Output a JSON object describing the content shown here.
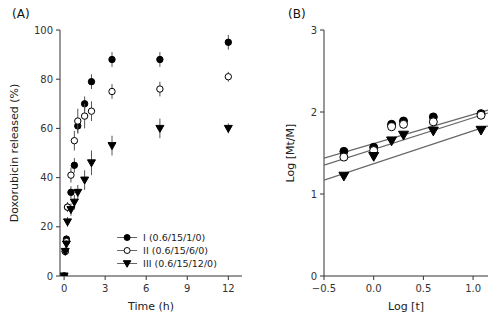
{
  "chart_data": [
    {
      "type": "scatter",
      "title": "(A)",
      "x_label": "Time (h)",
      "y_label": "Doxorubicin released (%)",
      "xlim": [
        -0.3,
        13.0
      ],
      "ylim": [
        0,
        100
      ],
      "xticks": [
        0,
        3,
        6,
        9,
        12
      ],
      "yticks": [
        0,
        20,
        40,
        60,
        80,
        100
      ],
      "legend": "lower right",
      "series": [
        {
          "name": "I (0.6/15/1/0)",
          "marker": "circle_filled",
          "color": "#000000",
          "x": [
            0,
            0.083,
            0.17,
            0.25,
            0.5,
            0.75,
            1.0,
            1.5,
            2.0,
            3.5,
            7.0,
            12.0
          ],
          "values": [
            0,
            10,
            15,
            28,
            34,
            45,
            61,
            70,
            79,
            88,
            88,
            95
          ],
          "yerr": [
            0,
            1,
            1.5,
            2,
            2.5,
            3,
            3,
            3,
            3,
            3,
            3,
            3
          ]
        },
        {
          "name": "II (0.6/15/6/0)",
          "marker": "circle_open",
          "color": "#000000",
          "x": [
            0,
            0.083,
            0.17,
            0.25,
            0.5,
            0.75,
            1.0,
            1.5,
            2.0,
            3.5,
            7.0,
            12.0
          ],
          "values": [
            0,
            10,
            14,
            28,
            41,
            55,
            63,
            65,
            67,
            75,
            76,
            81
          ],
          "yerr": [
            0,
            1,
            1.5,
            2,
            3,
            4,
            5,
            5,
            4,
            3,
            3,
            2
          ]
        },
        {
          "name": "III (0.6/15/12/0)",
          "marker": "triangle_down_filled",
          "color": "#000000",
          "x": [
            0,
            0.083,
            0.17,
            0.25,
            0.5,
            0.75,
            1.0,
            1.5,
            2.0,
            3.5,
            7.0,
            12.0
          ],
          "values": [
            0,
            10,
            13,
            22,
            27,
            30,
            34,
            39,
            46,
            53,
            60,
            60
          ],
          "yerr": [
            0,
            1,
            1.5,
            2,
            2.5,
            3,
            3,
            4,
            5,
            4,
            4,
            2
          ]
        }
      ]
    },
    {
      "type": "scatter",
      "title": "(B)",
      "x_label": "Log [t]",
      "y_label": "Log [Mt/M]",
      "xlim": [
        -0.5,
        1.15
      ],
      "ylim": [
        0,
        3
      ],
      "xticks": [
        {
          "value": -0.5,
          "label": "−0.5"
        },
        {
          "value": 0.0,
          "label": "0.0"
        },
        0.5,
        {
          "value": 1.0,
          "label": "1.0"
        }
      ],
      "yticks": [
        0,
        1,
        2,
        3
      ],
      "series": [
        {
          "marker": "circle_filled",
          "color": "#000000",
          "x": [
            -0.3,
            0.0,
            0.18,
            0.3,
            0.6,
            1.08
          ],
          "values": [
            1.52,
            1.57,
            1.85,
            1.89,
            1.94,
            1.98
          ]
        },
        {
          "type": "line",
          "color": "#666666",
          "x": [
            -0.5,
            1.15
          ],
          "values": [
            1.4375,
            2.02325
          ]
        },
        {
          "marker": "circle_open",
          "color": "#000000",
          "x": [
            -0.3,
            0.0,
            0.18,
            0.3,
            0.6,
            1.08
          ],
          "values": [
            1.45,
            1.53,
            1.82,
            1.85,
            1.88,
            1.96
          ]
        },
        {
          "type": "line",
          "color": "#666666",
          "x": [
            -0.5,
            1.15
          ],
          "values": [
            1.3525,
            1.98775
          ]
        },
        {
          "marker": "triangle_down_filled",
          "color": "#000000",
          "x": [
            -0.3,
            0.0,
            0.18,
            0.3,
            0.6,
            1.08
          ],
          "values": [
            1.22,
            1.46,
            1.65,
            1.72,
            1.77,
            1.78
          ]
        },
        {
          "type": "line",
          "color": "#666666",
          "x": [
            -0.5,
            1.15
          ],
          "values": [
            1.17,
            1.83
          ]
        }
      ]
    }
  ]
}
